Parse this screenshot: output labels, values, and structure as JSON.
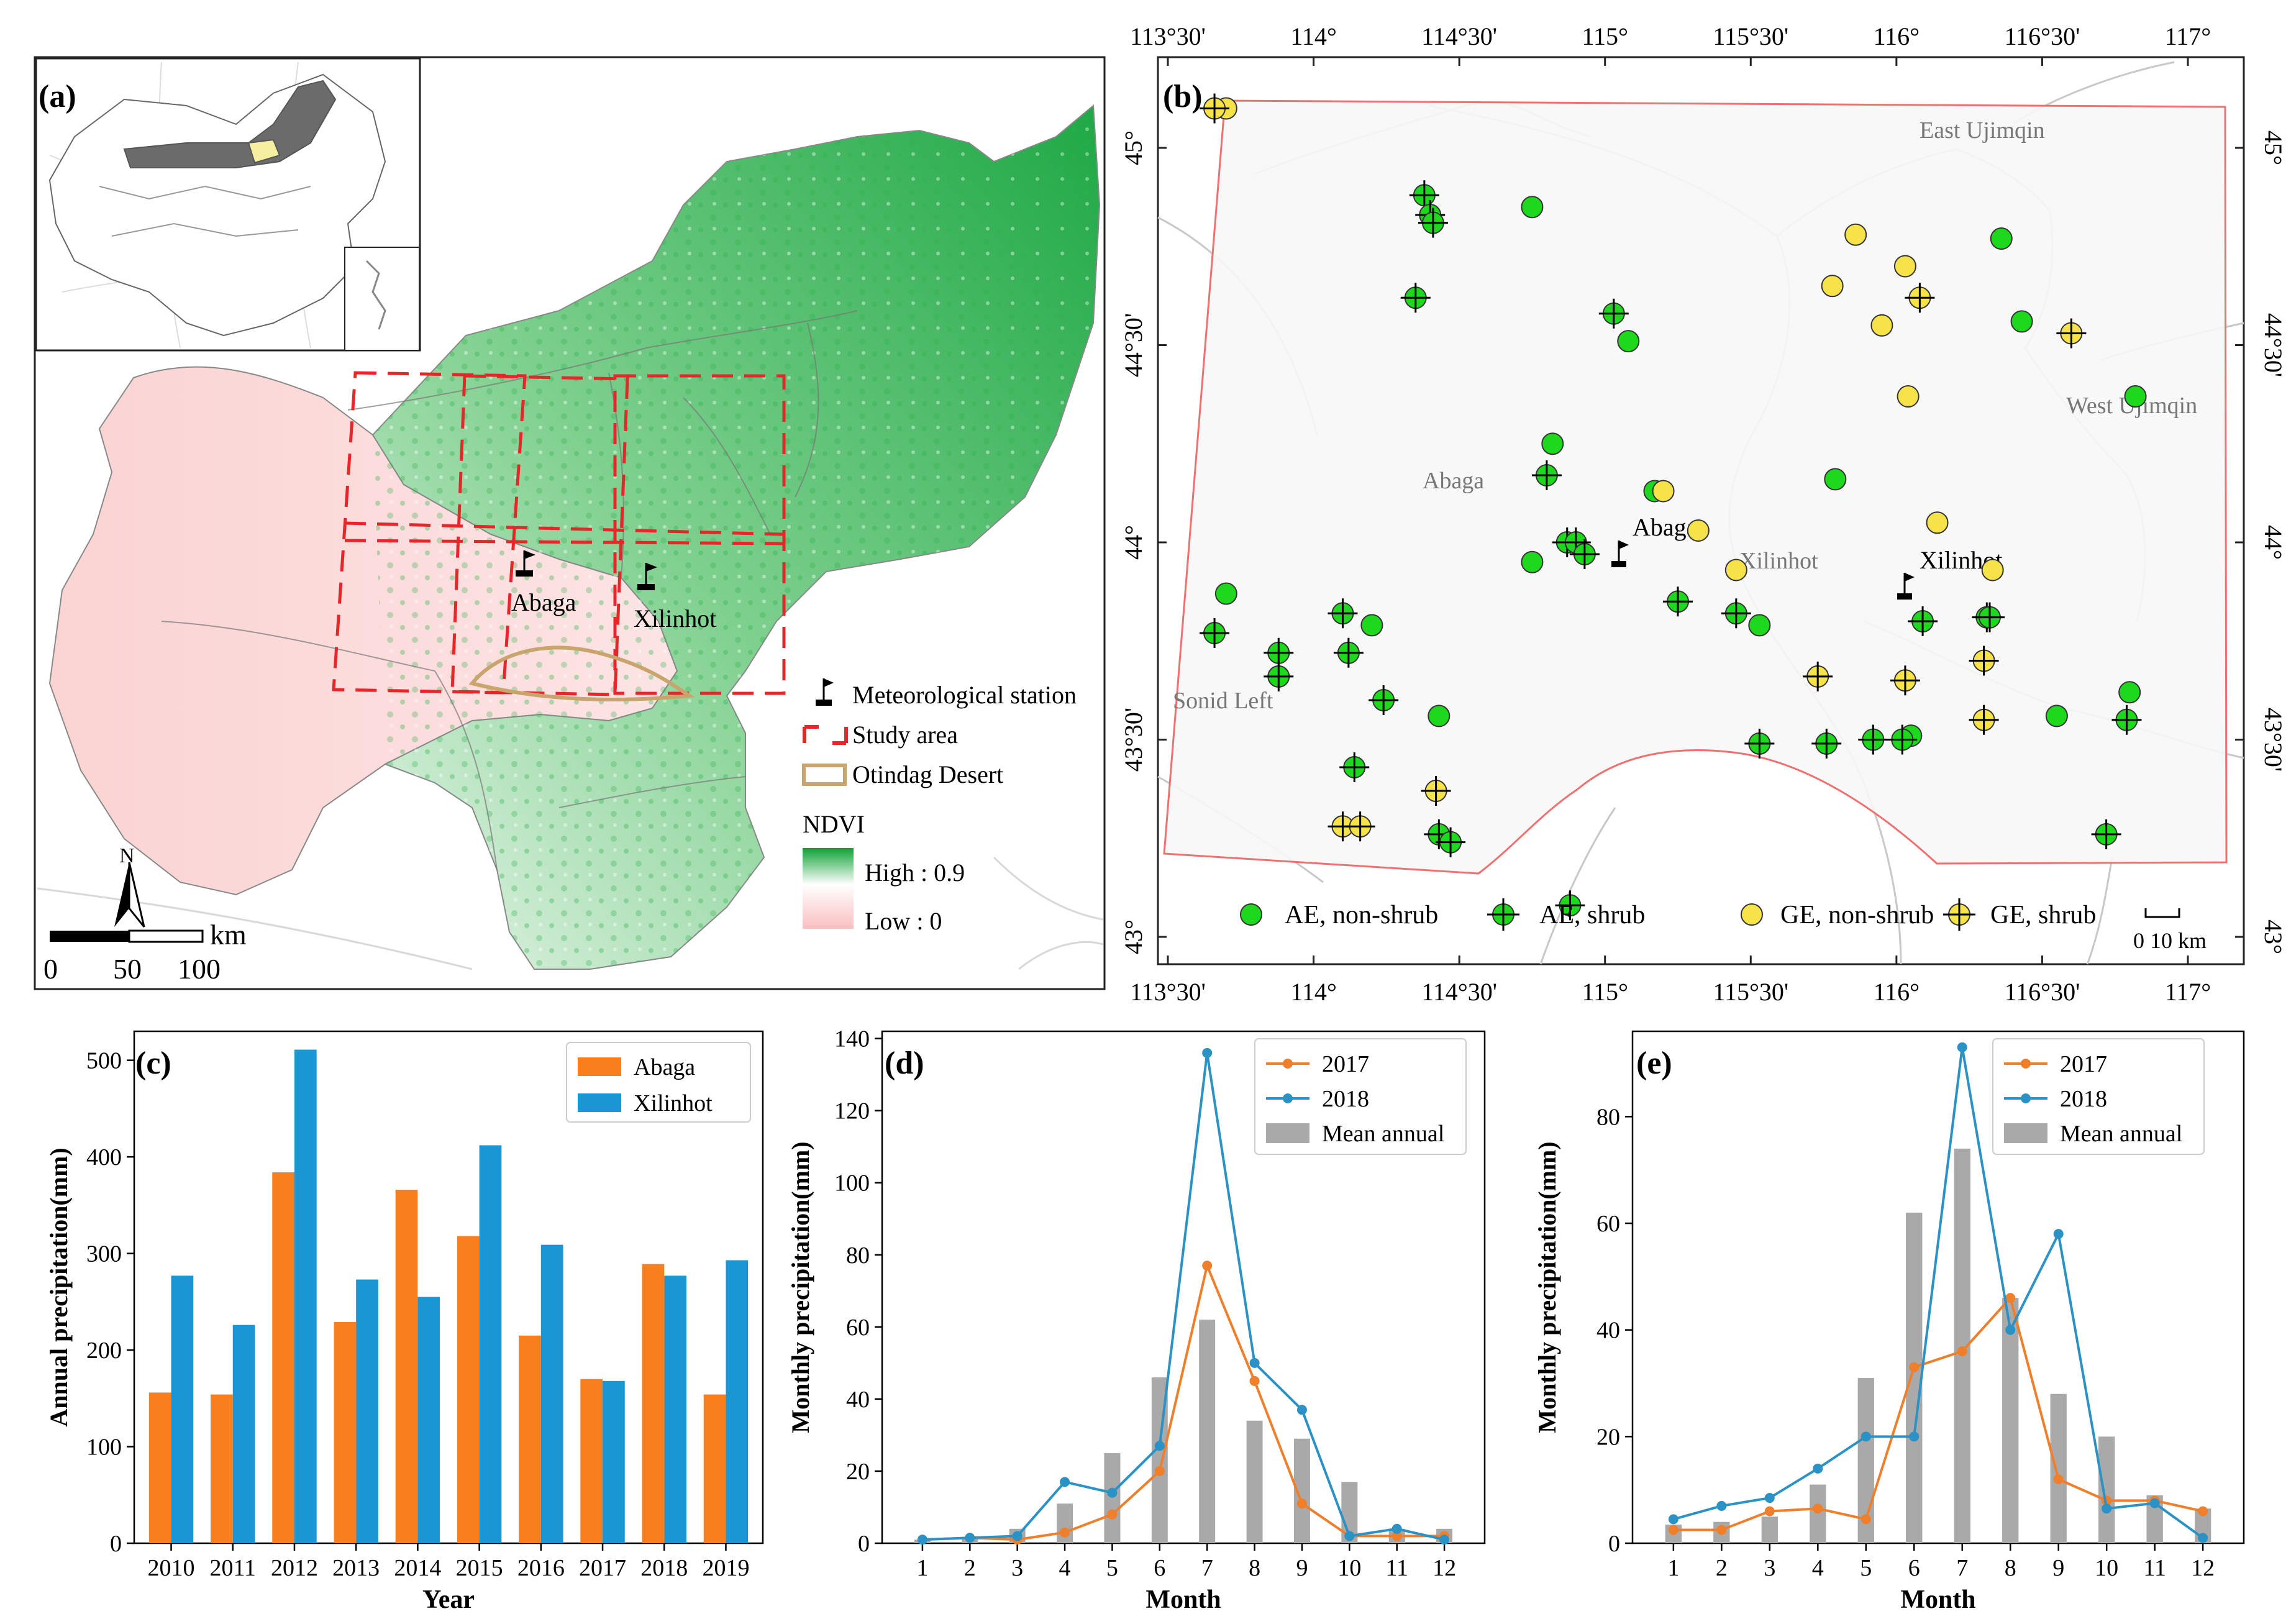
{
  "colors": {
    "abaga": "#F97F1E",
    "xilinhot": "#1B96D4",
    "line2017": "#F07F2C",
    "line2018": "#2A92C4",
    "mean": "#A9A9A9",
    "ae": "#1ED81E",
    "ge": "#F6E34A",
    "boundary": "#F07070",
    "study": "#E8262A",
    "desert": "#C9A46D",
    "ndvi_high": "#1BAA3C",
    "ndvi_low": "#F9C8C8",
    "region_line": "#B8B8B8"
  },
  "icons": {
    "station": "flag-icon",
    "north": "north-arrow-icon",
    "scale": "scale-bar-icon"
  },
  "panel_a": {
    "label": "(a)",
    "stations": [
      "Abaga",
      "Xilinhot"
    ],
    "legend": {
      "station": "Meteorological station",
      "study": "Study area",
      "desert": "Otindag Desert",
      "ndvi_title": "NDVI",
      "ndvi_high": "High : 0.9",
      "ndvi_low": "Low : 0"
    },
    "north": "N",
    "scale_unit": "km",
    "scale_ticks": [
      "0",
      "50",
      "100"
    ]
  },
  "panel_b": {
    "label": "(b)",
    "lon_labels": [
      "113°30'",
      "114°",
      "114°30'",
      "115°",
      "115°30'",
      "116°",
      "116°30'",
      "117°"
    ],
    "lat_labels": [
      "45°",
      "44°30'",
      "44°",
      "43°30'",
      "43°"
    ],
    "regions": [
      "East Ujimqin",
      "West Ujimqin",
      "Abaga",
      "Xilinhot",
      "Sonid Left"
    ],
    "stations": [
      "Abaga",
      "Xilinhot"
    ],
    "legend": [
      "AE, non-shrub",
      "AE, shrub",
      "GE, non-shrub",
      "GE, shrub"
    ],
    "scale_label": "0  10 km",
    "sites": {
      "ae_nonshrub": [
        [
          114.75,
          44.85
        ],
        [
          115.08,
          44.51
        ],
        [
          114.82,
          44.25
        ],
        [
          115.17,
          44.13
        ],
        [
          114.75,
          43.95
        ],
        [
          114.2,
          43.79
        ],
        [
          113.7,
          43.87
        ],
        [
          114.43,
          43.56
        ],
        [
          115.53,
          43.79
        ],
        [
          116.05,
          43.51
        ],
        [
          116.36,
          44.77
        ],
        [
          116.43,
          44.56
        ],
        [
          116.55,
          43.56
        ],
        [
          116.82,
          44.37
        ],
        [
          116.8,
          43.62
        ],
        [
          115.79,
          44.16
        ]
      ],
      "ae_shrub": [
        [
          114.38,
          44.88
        ],
        [
          114.4,
          44.83
        ],
        [
          114.41,
          44.81
        ],
        [
          114.35,
          44.62
        ],
        [
          114.8,
          44.17
        ],
        [
          115.03,
          44.58
        ],
        [
          114.87,
          44.0
        ],
        [
          114.9,
          44.0
        ],
        [
          114.93,
          43.97
        ],
        [
          115.25,
          43.85
        ],
        [
          115.45,
          43.82
        ],
        [
          114.1,
          43.82
        ],
        [
          114.12,
          43.72
        ],
        [
          113.66,
          43.77
        ],
        [
          113.88,
          43.72
        ],
        [
          113.88,
          43.66
        ],
        [
          114.24,
          43.6
        ],
        [
          114.14,
          43.43
        ],
        [
          114.43,
          43.26
        ],
        [
          114.47,
          43.24
        ],
        [
          116.72,
          43.26
        ],
        [
          116.79,
          43.55
        ],
        [
          115.53,
          43.49
        ],
        [
          115.76,
          43.49
        ],
        [
          115.92,
          43.5
        ],
        [
          116.02,
          43.5
        ],
        [
          116.09,
          43.8
        ],
        [
          116.31,
          43.81
        ],
        [
          116.32,
          43.81
        ],
        [
          114.88,
          43.08
        ]
      ],
      "ge_nonshrub": [
        [
          113.7,
          45.1
        ],
        [
          115.86,
          44.78
        ],
        [
          116.03,
          44.7
        ],
        [
          115.95,
          44.55
        ],
        [
          116.04,
          44.37
        ],
        [
          115.78,
          44.65
        ],
        [
          115.2,
          44.13
        ],
        [
          115.32,
          44.03
        ],
        [
          115.45,
          43.93
        ],
        [
          116.14,
          44.05
        ],
        [
          116.33,
          43.93
        ]
      ],
      "ge_shrub": [
        [
          113.66,
          45.1
        ],
        [
          116.08,
          44.62
        ],
        [
          116.6,
          44.53
        ],
        [
          116.3,
          43.7
        ],
        [
          116.03,
          43.65
        ],
        [
          115.73,
          43.66
        ],
        [
          116.3,
          43.55
        ],
        [
          114.1,
          43.28
        ],
        [
          114.16,
          43.28
        ],
        [
          114.42,
          43.37
        ]
      ]
    }
  },
  "chart_data": [
    {
      "panel": "(c)",
      "type": "bar",
      "categories": [
        "2010",
        "2011",
        "2012",
        "2013",
        "2014",
        "2015",
        "2016",
        "2017",
        "2018",
        "2019"
      ],
      "series": [
        {
          "name": "Abaga",
          "values": [
            156,
            154,
            384,
            229,
            366,
            318,
            215,
            170,
            289,
            154
          ]
        },
        {
          "name": "Xilinhot",
          "values": [
            277,
            226,
            511,
            273,
            255,
            412,
            309,
            168,
            277,
            293
          ]
        }
      ],
      "xlabel": "Year",
      "ylabel": "Annual precipitation(mm)",
      "ylim": [
        0,
        530
      ],
      "yticks": [
        0,
        100,
        200,
        300,
        400,
        500
      ],
      "legend": "top-right"
    },
    {
      "panel": "(d)",
      "type": "line",
      "x": [
        1,
        2,
        3,
        4,
        5,
        6,
        7,
        8,
        9,
        10,
        11,
        12
      ],
      "series": [
        {
          "name": "2017",
          "values": [
            1,
            1.5,
            1,
            3,
            8,
            20,
            77,
            45,
            11,
            2,
            2,
            2
          ]
        },
        {
          "name": "2018",
          "values": [
            1,
            1.5,
            2,
            17,
            14,
            27,
            136,
            50,
            37,
            2,
            4,
            1
          ]
        },
        {
          "name": "Mean annual",
          "kind": "bar",
          "values": [
            1,
            1.5,
            4,
            11,
            25,
            46,
            62,
            34,
            29,
            17,
            4,
            4
          ]
        }
      ],
      "xlabel": "Month",
      "ylabel": "Monthly precipitation(mm)",
      "ylim": [
        0,
        142
      ],
      "yticks": [
        0,
        20,
        40,
        60,
        80,
        100,
        120,
        140
      ],
      "legend": "top-right"
    },
    {
      "panel": "(e)",
      "type": "line",
      "x": [
        1,
        2,
        3,
        4,
        5,
        6,
        7,
        8,
        9,
        10,
        11,
        12
      ],
      "series": [
        {
          "name": "2017",
          "values": [
            2.5,
            2.5,
            6,
            6.5,
            4.5,
            33,
            36,
            46,
            12,
            8,
            8,
            6
          ]
        },
        {
          "name": "2018",
          "values": [
            4.5,
            7,
            8.5,
            14,
            20,
            20,
            93,
            40,
            58,
            6.5,
            7.5,
            1
          ]
        },
        {
          "name": "Mean annual",
          "kind": "bar",
          "values": [
            3.5,
            4,
            5,
            11,
            31,
            62,
            74,
            46,
            28,
            20,
            9,
            6.5
          ]
        }
      ],
      "xlabel": "Month",
      "ylabel": "Monthly precipitation(mm)",
      "ylim": [
        0,
        96
      ],
      "yticks": [
        0,
        20,
        40,
        60,
        80
      ],
      "legend": "top-right"
    }
  ]
}
